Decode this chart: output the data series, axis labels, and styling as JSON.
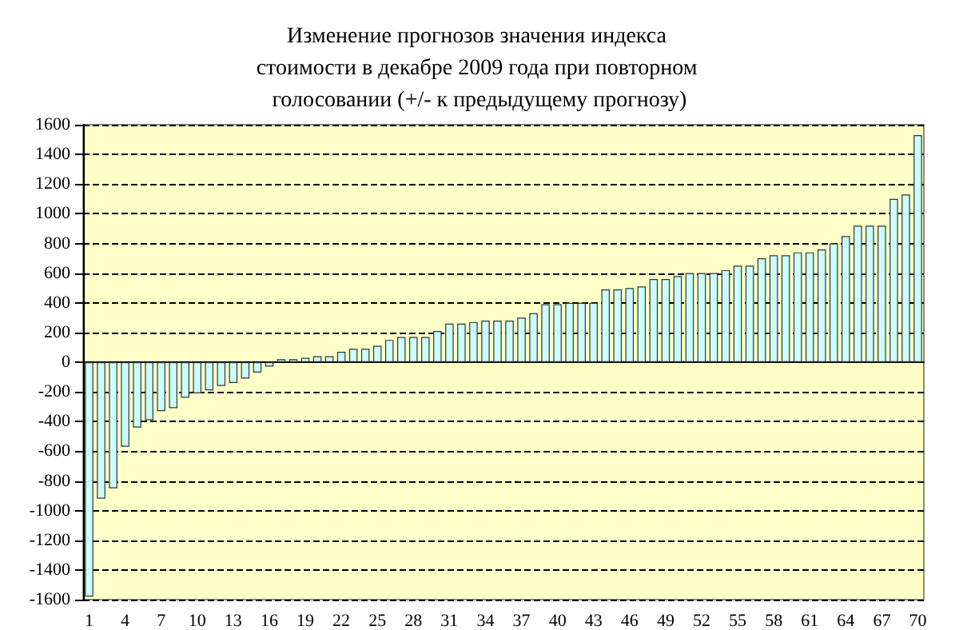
{
  "chart_data": {
    "type": "bar",
    "title": "Изменение прогнозов значения индекса стоимости в декабре 2009 года при повторном голосовании (+/- к предыдущему прогнозу)",
    "categories": [
      "1",
      null,
      null,
      "4",
      null,
      null,
      "7",
      null,
      null,
      "10",
      null,
      null,
      "13",
      null,
      null,
      "16",
      null,
      null,
      "19",
      null,
      null,
      "22",
      null,
      null,
      "25",
      null,
      null,
      "28",
      null,
      null,
      "31",
      null,
      null,
      "34",
      null,
      null,
      "37",
      null,
      null,
      "40",
      null,
      null,
      "43",
      null,
      null,
      "46",
      null,
      null,
      "49",
      null,
      null,
      "52",
      null,
      null,
      "55",
      null,
      null,
      "58",
      null,
      null,
      "61",
      null,
      null,
      "64",
      null,
      null,
      "67",
      null,
      null,
      "70"
    ],
    "values": [
      -1580,
      -920,
      -850,
      -570,
      -440,
      -390,
      -330,
      -310,
      -240,
      -210,
      -190,
      -160,
      -140,
      -110,
      -70,
      -30,
      20,
      20,
      30,
      40,
      40,
      70,
      90,
      90,
      110,
      150,
      170,
      170,
      170,
      210,
      260,
      260,
      270,
      280,
      280,
      280,
      300,
      330,
      390,
      390,
      400,
      400,
      400,
      490,
      490,
      500,
      510,
      560,
      560,
      580,
      600,
      600,
      600,
      620,
      650,
      650,
      700,
      720,
      720,
      740,
      740,
      760,
      800,
      850,
      920,
      920,
      920,
      1100,
      1130,
      1530
    ],
    "color": "#ccffff",
    "ylim": [
      -1600,
      1600
    ],
    "yticks": [
      -1600,
      -1400,
      -1200,
      -1000,
      -800,
      -600,
      -400,
      -200,
      0,
      200,
      400,
      600,
      800,
      1000,
      1200,
      1400,
      1600
    ],
    "grid": "y"
  }
}
